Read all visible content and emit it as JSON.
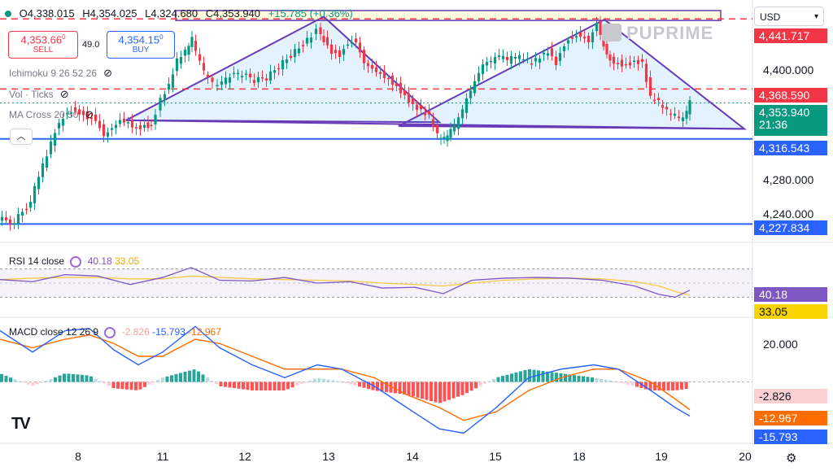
{
  "header": {
    "open_label": "O",
    "open": "4,338.015",
    "high_label": "H",
    "high": "4,354.025",
    "low_label": "L",
    "low": "4,324.680",
    "close_label": "C",
    "close": "4,353.940",
    "change": "+15.785 (+0.36%)"
  },
  "trade": {
    "sell_price": "4,353.66",
    "sell_price_sup": "0",
    "sell_label": "SELL",
    "spread": "49.0",
    "buy_price": "4,354.15",
    "buy_price_sup": "0",
    "buy_label": "BUY"
  },
  "indicators": {
    "ichimoku": "Ichimoku 9 26 52 26",
    "vol": "Vol · Ticks",
    "ma_cross": "MA Cross 20 50",
    "collapse_icon": "chevron-up-icon"
  },
  "rsi_pane": {
    "label": "RSI 14 close",
    "value_rsi": "40.18",
    "value_ma": "33.05"
  },
  "macd_pane": {
    "label": "MACD close 12 26 9",
    "hist": "-2.826",
    "macd": "-15.793",
    "signal": "-12.967"
  },
  "currency": "USD",
  "watermark": "PUPRIME",
  "brand_logo": "TV",
  "colors": {
    "up": "#089981",
    "down": "#f23645",
    "blue_level": "#2962ff",
    "pattern": "#673ab7",
    "red_level": "#f23645"
  },
  "chart_data": {
    "type": "line",
    "price_axis": {
      "ticks": [
        "4,400.000",
        "4,280.000",
        "4,240.000"
      ],
      "ylim": [
        4212,
        4458
      ]
    },
    "time_axis": {
      "ticks": [
        "8",
        "11",
        "12",
        "13",
        "14",
        "15",
        "18",
        "19",
        "20"
      ]
    },
    "price_tags": {
      "resistance_top": "4,441.717",
      "resistance_mid": "4,368.590",
      "last_price": "4,353.940",
      "countdown": "21:36",
      "support_mid": "4,316.543",
      "support_low": "4,227.834"
    },
    "levels": [
      {
        "name": "resistance_top",
        "value": 4441.717,
        "style": "dashed",
        "color": "#f23645"
      },
      {
        "name": "resistance_mid",
        "value": 4368.59,
        "style": "dashed",
        "color": "#f23645"
      },
      {
        "name": "support_mid",
        "value": 4316.543,
        "style": "solid",
        "color": "#2962ff"
      },
      {
        "name": "support_low",
        "value": 4227.834,
        "style": "solid",
        "color": "#2962ff"
      }
    ],
    "price_series": {
      "name": "price",
      "x": [
        0,
        20,
        40,
        50,
        60,
        70,
        80,
        90,
        100,
        110,
        120,
        130,
        140,
        150,
        160,
        170,
        180,
        188,
        200,
        210,
        220,
        230,
        238,
        248,
        258,
        270,
        285,
        300,
        315,
        330,
        345,
        360,
        375,
        385,
        392,
        400,
        410,
        420,
        430,
        440,
        450,
        460,
        470,
        480,
        490,
        500,
        510,
        520,
        530,
        540,
        548,
        556,
        566,
        576,
        586,
        596,
        606,
        616,
        626,
        636,
        646,
        656,
        666,
        676,
        686,
        696,
        706,
        716,
        726,
        736,
        744,
        752,
        762,
        772,
        782,
        792,
        802,
        812,
        822,
        832,
        842,
        850
      ],
      "values": [
        4233,
        4230,
        4252,
        4278,
        4300,
        4325,
        4340,
        4347,
        4345,
        4340,
        4338,
        4322,
        4330,
        4338,
        4335,
        4328,
        4331,
        4330,
        4358,
        4372,
        4398,
        4407,
        4420,
        4395,
        4378,
        4370,
        4382,
        4384,
        4377,
        4380,
        4392,
        4404,
        4416,
        4424,
        4430,
        4420,
        4408,
        4405,
        4418,
        4420,
        4398,
        4392,
        4386,
        4380,
        4372,
        4362,
        4352,
        4346,
        4340,
        4320,
        4316,
        4324,
        4336,
        4356,
        4374,
        4392,
        4396,
        4402,
        4398,
        4402,
        4400,
        4396,
        4402,
        4408,
        4396,
        4416,
        4424,
        4426,
        4420,
        4440,
        4415,
        4400,
        4396,
        4394,
        4398,
        4396,
        4360,
        4355,
        4345,
        4340,
        4336,
        4354
      ]
    },
    "pattern": {
      "triangle_1": [
        [
          155,
          4336
        ],
        [
          398,
          4444
        ],
        [
          540,
          4334
        ]
      ],
      "triangle_2": [
        [
          490,
          4330
        ],
        [
          743,
          4441
        ],
        [
          915,
          4327
        ]
      ],
      "trend_base": [
        [
          155,
          4336
        ],
        [
          915,
          4327
        ]
      ],
      "low_line": [
        [
          492,
          4330
        ],
        [
          577,
          4330
        ]
      ]
    },
    "rsi": {
      "ylim": [
        20,
        80
      ],
      "x": [
        0,
        40,
        80,
        120,
        160,
        200,
        235,
        270,
        310,
        350,
        390,
        430,
        470,
        510,
        545,
        580,
        620,
        660,
        700,
        740,
        780,
        810,
        830,
        848
      ],
      "rsi_values": [
        55,
        52,
        62,
        60,
        48,
        58,
        72,
        54,
        53,
        58,
        50,
        52,
        43,
        44,
        35,
        54,
        57,
        58,
        57,
        54,
        46,
        34,
        30,
        40
      ],
      "ma_values": [
        55,
        57,
        58,
        58,
        56,
        56,
        60,
        58,
        56,
        55,
        54,
        53,
        50,
        48,
        46,
        50,
        54,
        56,
        57,
        56,
        52,
        46,
        38,
        33
      ]
    },
    "macd": {
      "ylim": [
        -28,
        28
      ],
      "x": [
        0,
        40,
        80,
        110,
        140,
        170,
        200,
        240,
        270,
        310,
        350,
        390,
        420,
        460,
        500,
        540,
        570,
        610,
        650,
        690,
        730,
        760,
        800,
        830,
        848
      ],
      "macd_values": [
        24,
        14,
        24,
        25,
        15,
        8,
        14,
        26,
        16,
        8,
        2,
        8,
        6,
        -2,
        -12,
        -22,
        -24,
        -12,
        2,
        6,
        8,
        6,
        -4,
        -12,
        -16
      ],
      "signal_values": [
        20,
        16,
        20,
        22,
        18,
        12,
        12,
        20,
        18,
        12,
        6,
        6,
        6,
        2,
        -6,
        -12,
        -18,
        -14,
        -4,
        2,
        6,
        6,
        0,
        -8,
        -13
      ],
      "axis_ticks": [
        "20.000"
      ]
    }
  }
}
